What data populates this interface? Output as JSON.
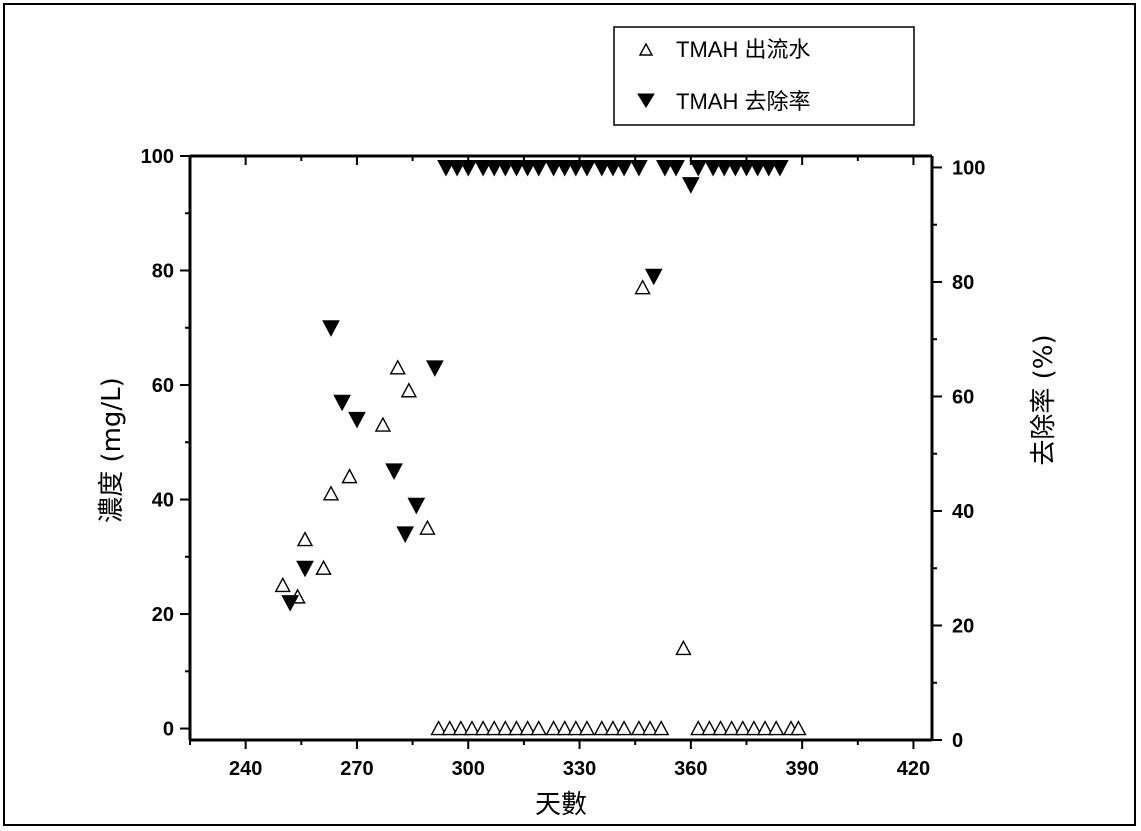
{
  "chart_data": {
    "type": "scatter",
    "title": "",
    "xlabel": "天數",
    "ylabel_left": "濃度 (mg/L)",
    "ylabel_right": "去除率 (%)",
    "xlim": [
      225,
      425
    ],
    "ylim_left": [
      -2,
      100
    ],
    "ylim_right": [
      0,
      102
    ],
    "x_ticks": [
      240,
      270,
      300,
      330,
      360,
      390,
      420
    ],
    "y_ticks_left": [
      0,
      20,
      40,
      60,
      80,
      100
    ],
    "y_ticks_right": [
      0,
      20,
      40,
      60,
      80,
      100
    ],
    "legend_position": "top-right",
    "series": [
      {
        "name": "TMAH 出流水",
        "axis": "left",
        "marker": "open-triangle-up",
        "color": "#000000",
        "points": [
          [
            250,
            25
          ],
          [
            254,
            23
          ],
          [
            256,
            33
          ],
          [
            261,
            28
          ],
          [
            263,
            41
          ],
          [
            268,
            44
          ],
          [
            277,
            53
          ],
          [
            281,
            63
          ],
          [
            284,
            59
          ],
          [
            289,
            35
          ],
          [
            347,
            77
          ],
          [
            358,
            14
          ],
          [
            292,
            0
          ],
          [
            295,
            0
          ],
          [
            298,
            0
          ],
          [
            301,
            0
          ],
          [
            304,
            0
          ],
          [
            307,
            0
          ],
          [
            310,
            0
          ],
          [
            313,
            0
          ],
          [
            316,
            0
          ],
          [
            319,
            0
          ],
          [
            323,
            0
          ],
          [
            326,
            0
          ],
          [
            329,
            0
          ],
          [
            332,
            0
          ],
          [
            336,
            0
          ],
          [
            339,
            0
          ],
          [
            342,
            0
          ],
          [
            346,
            0
          ],
          [
            349,
            0
          ],
          [
            352,
            0
          ],
          [
            362,
            0
          ],
          [
            365,
            0
          ],
          [
            368,
            0
          ],
          [
            371,
            0
          ],
          [
            374,
            0
          ],
          [
            377,
            0
          ],
          [
            380,
            0
          ],
          [
            383,
            0
          ],
          [
            387,
            0
          ],
          [
            389,
            0
          ]
        ]
      },
      {
        "name": "TMAH 去除率",
        "axis": "right",
        "marker": "filled-triangle-down",
        "color": "#000000",
        "points": [
          [
            252,
            24
          ],
          [
            256,
            30
          ],
          [
            263,
            72
          ],
          [
            266,
            59
          ],
          [
            270,
            56
          ],
          [
            280,
            47
          ],
          [
            283,
            36
          ],
          [
            286,
            41
          ],
          [
            291,
            65
          ],
          [
            350,
            81
          ],
          [
            360,
            97
          ],
          [
            294,
            100
          ],
          [
            297,
            100
          ],
          [
            300,
            100
          ],
          [
            304,
            100
          ],
          [
            307,
            100
          ],
          [
            310,
            100
          ],
          [
            313,
            100
          ],
          [
            316,
            100
          ],
          [
            319,
            100
          ],
          [
            323,
            100
          ],
          [
            326,
            100
          ],
          [
            329,
            100
          ],
          [
            332,
            100
          ],
          [
            336,
            100
          ],
          [
            339,
            100
          ],
          [
            342,
            100
          ],
          [
            346,
            100
          ],
          [
            353,
            100
          ],
          [
            356,
            100
          ],
          [
            362,
            100
          ],
          [
            366,
            100
          ],
          [
            369,
            100
          ],
          [
            372,
            100
          ],
          [
            375,
            100
          ],
          [
            378,
            100
          ],
          [
            381,
            100
          ],
          [
            384,
            100
          ]
        ]
      }
    ]
  }
}
